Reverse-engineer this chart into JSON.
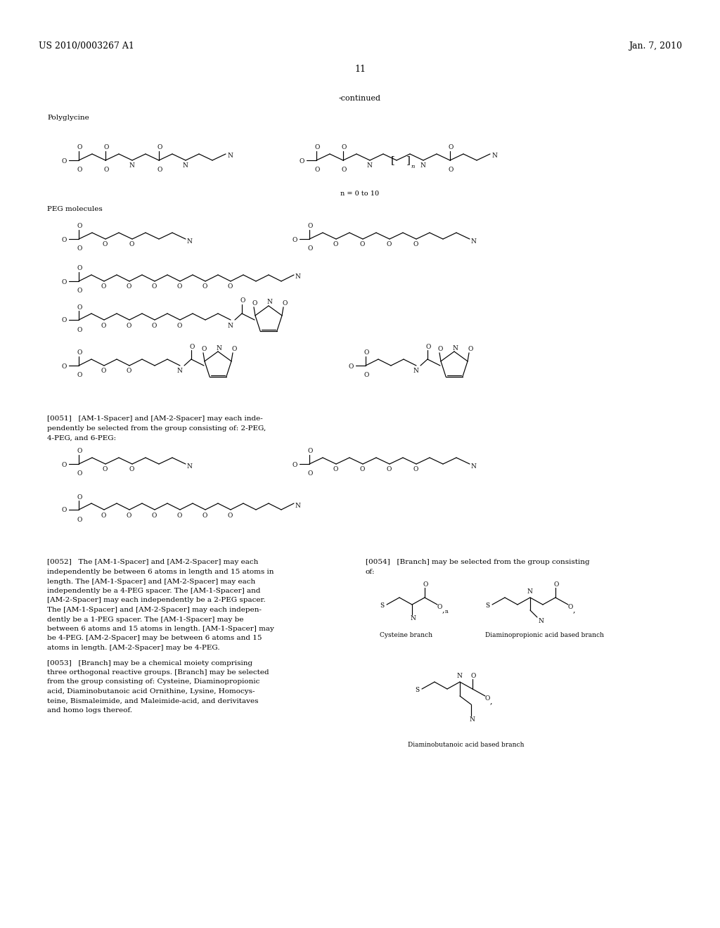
{
  "page_header_left": "US 2010/0003267 A1",
  "page_header_right": "Jan. 7, 2010",
  "page_number": "11",
  "continued_label": "-continued",
  "bg_color": "#ffffff",
  "text_color": "#000000",
  "font_size_header": 9,
  "font_size_body": 7,
  "font_size_label": 7.5,
  "font_size_small": 6.5,
  "sections": {
    "polyglycine_label": "Polyglycine",
    "peg_label": "PEG molecules",
    "n_label": "n = 0 to 10"
  },
  "paragraph_0051": "[0051]   [AM-1-Spacer] and [AM-2-Spacer] may each inde-\npendently be selected from the group consisting of: 2-PEG,\n4-PEG, and 6-PEG:",
  "paragraph_0052": "[0052]   The [AM-1-Spacer] and [AM-2-Spacer] may each\nindependently be between 6 atoms in length and 15 atoms in\nlength. The [AM-1-Spacer] and [AM-2-Spacer] may each\nindependently be a 4-PEG spacer. The [AM-1-Spacer] and\n[AM-2-Spacer] may each independently be a 2-PEG spacer.\nThe [AM-1-Spacer] and [AM-2-Spacer] may each indepen-\ndently be a 1-PEG spacer. The [AM-1-Spacer] may be\nbetween 6 atoms and 15 atoms in length. [AM-1-Spacer] may\nbe 4-PEG. [AM-2-Spacer] may be between 6 atoms and 15\natoms in length. [AM-2-Spacer] may be 4-PEG.",
  "paragraph_0053": "[0053]   [Branch] may be a chemical moiety comprising\nthree orthogonal reactive groups. [Branch] may be selected\nfrom the group consisting of: Cysteine, Diaminopropionic\nacid, Diaminobutanoic acid Ornithine, Lysine, Homocys-\nteine, Bismaleimide, and Maleimide-acid, and derivitaves\nand homo logs thereof.",
  "paragraph_0054": "[0054]   [Branch] may be selected from the group consisting\nof:",
  "cysteine_label": "Cysteine branch",
  "diaminopropionic_label": "Diaminopropionic acid based branch",
  "diaminobutanoic_label": "Diaminobutanoic acid based branch"
}
